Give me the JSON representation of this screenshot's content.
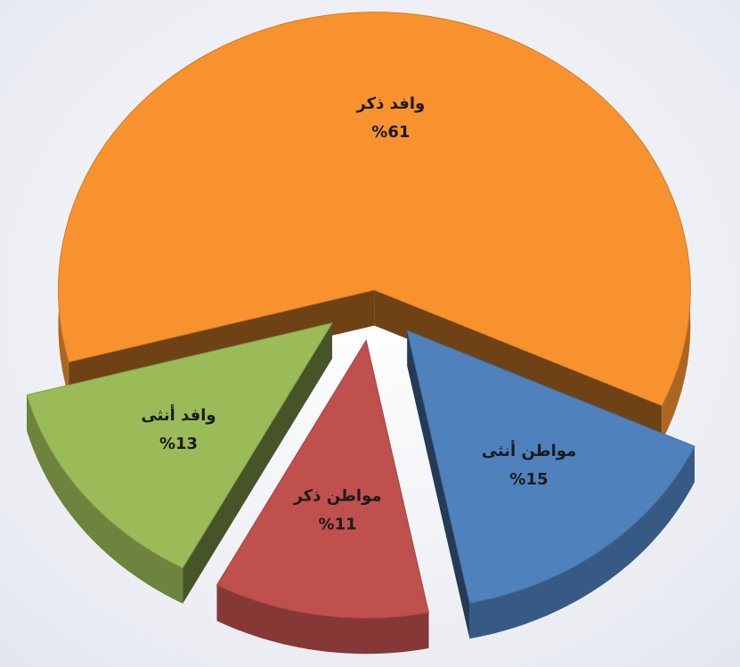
{
  "chart_data": {
    "type": "pie",
    "categories": [
      "وافد ذكر",
      "مواطن أنثى",
      "مواطن ذكر",
      "وافد أنثى"
    ],
    "values": [
      61,
      15,
      11,
      13
    ],
    "value_labels": [
      "%61",
      "%15",
      "%11",
      "%13"
    ],
    "colors": [
      "#f7922f",
      "#4f81bd",
      "#c0504d",
      "#9bbb59"
    ]
  }
}
